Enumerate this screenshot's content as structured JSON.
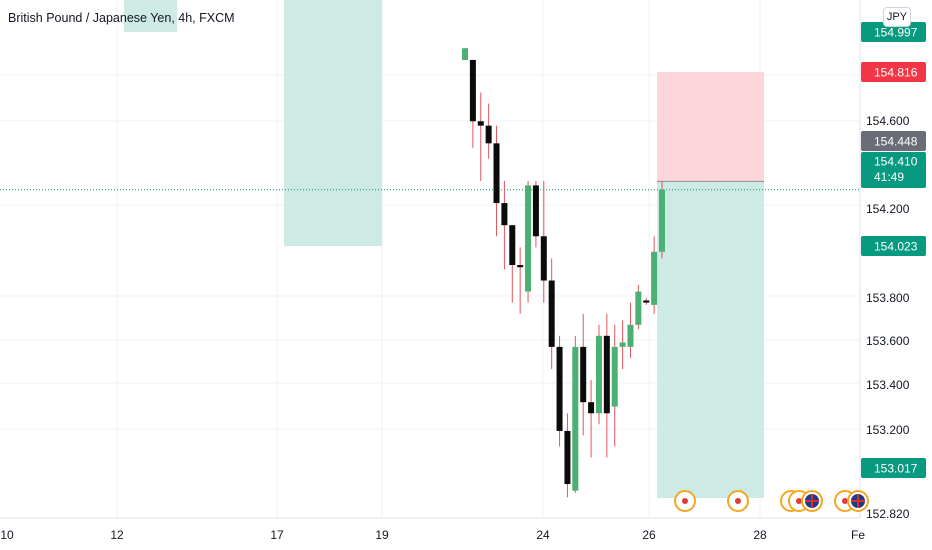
{
  "symbol_title": "British Pound / Japanese Yen, 4h, FXCM",
  "currency_button": "JPY",
  "colors": {
    "up": "#4caf73",
    "down": "#0b0b0b",
    "wick": "#e0565b",
    "target_zone": "#cdeae5",
    "stop_zone": "#fbd5d9",
    "green_label": "#089981",
    "red_label": "#f23645",
    "grey_label": "#6a6d78",
    "grid": "#f0f2f5"
  },
  "chart_data": {
    "type": "candlestick",
    "title": "British Pound / Japanese Yen, 4h, FXCM",
    "ylim": [
      152.8,
      155.05
    ],
    "y_ticks": [
      "154.600",
      "154.200",
      "153.800",
      "153.600",
      "153.400",
      "153.200",
      "152.820"
    ],
    "x_ticks": [
      "10",
      "12",
      "17",
      "19",
      "24",
      "26",
      "28",
      "Fe"
    ],
    "price_labels": [
      {
        "text": "154.997",
        "value": 154.997,
        "style": "green",
        "partial": true
      },
      {
        "text": "154.816",
        "value": 154.816,
        "style": "red"
      },
      {
        "text": "154.448",
        "value": 154.448,
        "style": "grey"
      },
      {
        "text": "154.410",
        "sub": "41:49",
        "value": 154.41,
        "style": "green"
      },
      {
        "text": "154.023",
        "value": 154.023,
        "style": "green"
      },
      {
        "text": "153.017",
        "value": 153.017,
        "style": "green"
      }
    ],
    "last_price": 154.41,
    "position": {
      "entry": 154.448,
      "stop": 154.816,
      "target": 153.017
    },
    "candles": [
      {
        "o": 154.997,
        "h": 155.05,
        "l": 154.997,
        "c": 155.05
      },
      {
        "o": 154.997,
        "h": 154.997,
        "l": 154.6,
        "c": 154.72
      },
      {
        "o": 154.72,
        "h": 154.85,
        "l": 154.45,
        "c": 154.7
      },
      {
        "o": 154.7,
        "h": 154.8,
        "l": 154.55,
        "c": 154.62
      },
      {
        "o": 154.62,
        "h": 154.7,
        "l": 154.2,
        "c": 154.35
      },
      {
        "o": 154.35,
        "h": 154.45,
        "l": 154.05,
        "c": 154.25
      },
      {
        "o": 154.25,
        "h": 154.25,
        "l": 153.9,
        "c": 154.07
      },
      {
        "o": 154.07,
        "h": 154.15,
        "l": 153.85,
        "c": 154.06
      },
      {
        "o": 153.95,
        "h": 154.45,
        "l": 153.9,
        "c": 154.43
      },
      {
        "o": 154.43,
        "h": 154.45,
        "l": 154.15,
        "c": 154.2
      },
      {
        "o": 154.2,
        "h": 154.45,
        "l": 153.9,
        "c": 154.0
      },
      {
        "o": 154.0,
        "h": 154.1,
        "l": 153.6,
        "c": 153.7
      },
      {
        "o": 153.7,
        "h": 153.75,
        "l": 153.25,
        "c": 153.32
      },
      {
        "o": 153.32,
        "h": 153.4,
        "l": 153.02,
        "c": 153.08
      },
      {
        "o": 153.05,
        "h": 153.75,
        "l": 153.04,
        "c": 153.7
      },
      {
        "o": 153.7,
        "h": 153.85,
        "l": 153.3,
        "c": 153.45
      },
      {
        "o": 153.45,
        "h": 153.55,
        "l": 153.2,
        "c": 153.4
      },
      {
        "o": 153.4,
        "h": 153.8,
        "l": 153.35,
        "c": 153.75
      },
      {
        "o": 153.75,
        "h": 153.85,
        "l": 153.2,
        "c": 153.4
      },
      {
        "o": 153.43,
        "h": 153.8,
        "l": 153.25,
        "c": 153.7
      },
      {
        "o": 153.7,
        "h": 153.82,
        "l": 153.6,
        "c": 153.72
      },
      {
        "o": 153.7,
        "h": 153.9,
        "l": 153.65,
        "c": 153.8
      },
      {
        "o": 153.8,
        "h": 153.98,
        "l": 153.78,
        "c": 153.95
      },
      {
        "o": 153.91,
        "h": 153.92,
        "l": 153.89,
        "c": 153.9
      },
      {
        "o": 153.89,
        "h": 154.2,
        "l": 153.85,
        "c": 154.13
      },
      {
        "o": 154.13,
        "h": 154.45,
        "l": 154.1,
        "c": 154.41
      }
    ],
    "events": [
      {
        "type": "economic",
        "flag": false
      },
      {
        "type": "economic",
        "flag": false
      },
      {
        "type": "economic",
        "flag": false
      },
      {
        "type": "economic",
        "flag": false
      },
      {
        "type": "economic",
        "flag": true
      },
      {
        "type": "economic",
        "flag": false
      },
      {
        "type": "economic",
        "flag": true
      }
    ]
  }
}
